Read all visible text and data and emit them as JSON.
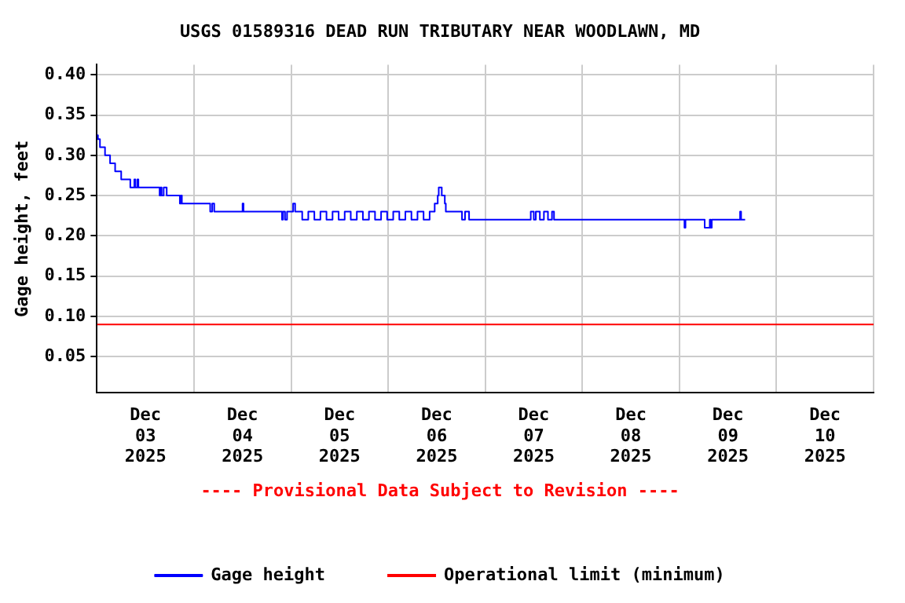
{
  "chart_data": {
    "type": "step",
    "title": "USGS 01589316 DEAD RUN TRIBUTARY NEAR WOODLAWN, MD",
    "ylabel": "Gage height, feet",
    "annotations": [
      "---- Provisional Data Subject to Revision ----"
    ],
    "xlim": [
      "2025-12-03T00:00",
      "2025-12-11T00:00"
    ],
    "xticks": [
      {
        "value": "2025-12-03T00:00",
        "label": null
      },
      {
        "value": "2025-12-03T12:00",
        "label": "Dec 03 2025"
      },
      {
        "value": "2025-12-04T00:00",
        "label": null
      },
      {
        "value": "2025-12-04T12:00",
        "label": "Dec 04 2025"
      },
      {
        "value": "2025-12-05T00:00",
        "label": null
      },
      {
        "value": "2025-12-05T12:00",
        "label": "Dec 05 2025"
      },
      {
        "value": "2025-12-06T00:00",
        "label": null
      },
      {
        "value": "2025-12-06T12:00",
        "label": "Dec 06 2025"
      },
      {
        "value": "2025-12-07T00:00",
        "label": null
      },
      {
        "value": "2025-12-07T12:00",
        "label": "Dec 07 2025"
      },
      {
        "value": "2025-12-08T00:00",
        "label": null
      },
      {
        "value": "2025-12-08T12:00",
        "label": "Dec 08 2025"
      },
      {
        "value": "2025-12-09T00:00",
        "label": null
      },
      {
        "value": "2025-12-09T12:00",
        "label": "Dec 09 2025"
      },
      {
        "value": "2025-12-10T00:00",
        "label": null
      },
      {
        "value": "2025-12-10T12:00",
        "label": "Dec 10 2025"
      },
      {
        "value": "2025-12-11T00:00",
        "label": null
      }
    ],
    "ylim": [
      0.005,
      0.4125
    ],
    "yticks": [
      0.05,
      {
        "value": 0.1,
        "label": "0.10"
      },
      0.15,
      {
        "value": 0.2,
        "label": "0.20"
      },
      0.25,
      {
        "value": 0.3,
        "label": "0.30"
      },
      0.35,
      {
        "value": 0.4,
        "label": "0.40"
      }
    ],
    "grid": true,
    "legend": "bottom",
    "marker": "none",
    "line_style": "solid",
    "series": [
      {
        "name": "Gage height",
        "color": "#0000ff",
        "x": [
          "2025-12-03T00:00",
          "2025-12-03T00:15",
          "2025-12-03T00:45",
          "2025-12-03T02:00",
          "2025-12-03T03:15",
          "2025-12-03T04:30",
          "2025-12-03T06:00",
          "2025-12-03T08:15",
          "2025-12-03T09:15",
          "2025-12-03T09:30",
          "2025-12-03T10:00",
          "2025-12-03T10:15",
          "2025-12-03T15:30",
          "2025-12-03T15:45",
          "2025-12-03T16:00",
          "2025-12-03T16:30",
          "2025-12-03T17:00",
          "2025-12-03T17:15",
          "2025-12-03T20:30",
          "2025-12-03T20:45",
          "2025-12-03T21:00",
          "2025-12-04T03:30",
          "2025-12-04T04:00",
          "2025-12-04T04:30",
          "2025-12-04T05:00",
          "2025-12-04T05:30",
          "2025-12-04T12:00",
          "2025-12-04T12:15",
          "2025-12-04T21:45",
          "2025-12-04T22:00",
          "2025-12-04T22:30",
          "2025-12-04T23:00",
          "2025-12-05T00:30",
          "2025-12-05T01:00",
          "2025-12-05T02:45",
          "2025-12-05T04:15",
          "2025-12-05T05:45",
          "2025-12-05T07:15",
          "2025-12-05T08:45",
          "2025-12-05T10:15",
          "2025-12-05T11:45",
          "2025-12-05T13:15",
          "2025-12-05T14:45",
          "2025-12-05T16:15",
          "2025-12-05T17:45",
          "2025-12-05T19:15",
          "2025-12-05T20:45",
          "2025-12-05T22:15",
          "2025-12-05T23:45",
          "2025-12-06T01:15",
          "2025-12-06T02:45",
          "2025-12-06T04:15",
          "2025-12-06T05:45",
          "2025-12-06T07:15",
          "2025-12-06T08:45",
          "2025-12-06T10:15",
          "2025-12-06T11:30",
          "2025-12-06T12:15",
          "2025-12-06T12:30",
          "2025-12-06T13:15",
          "2025-12-06T14:00",
          "2025-12-06T14:15",
          "2025-12-06T18:15",
          "2025-12-06T19:00",
          "2025-12-06T20:00",
          "2025-12-06T21:00",
          "2025-12-07T11:15",
          "2025-12-07T12:00",
          "2025-12-07T12:30",
          "2025-12-07T13:30",
          "2025-12-07T14:30",
          "2025-12-07T15:30",
          "2025-12-07T16:30",
          "2025-12-07T17:00",
          "2025-12-09T01:15",
          "2025-12-09T01:30",
          "2025-12-09T06:15",
          "2025-12-09T07:30",
          "2025-12-09T07:45",
          "2025-12-09T08:00",
          "2025-12-09T15:00",
          "2025-12-09T15:15",
          "2025-12-09T16:15"
        ],
        "values": [
          0.325,
          0.32,
          0.31,
          0.3,
          0.29,
          0.28,
          0.27,
          0.26,
          0.27,
          0.26,
          0.27,
          0.26,
          0.25,
          0.26,
          0.25,
          0.26,
          0.26,
          0.25,
          0.24,
          0.25,
          0.24,
          0.24,
          0.23,
          0.24,
          0.23,
          0.23,
          0.24,
          0.23,
          0.22,
          0.23,
          0.22,
          0.23,
          0.24,
          0.23,
          0.22,
          0.23,
          0.22,
          0.23,
          0.22,
          0.23,
          0.22,
          0.23,
          0.22,
          0.23,
          0.22,
          0.23,
          0.22,
          0.23,
          0.22,
          0.23,
          0.22,
          0.23,
          0.22,
          0.23,
          0.22,
          0.23,
          0.24,
          0.25,
          0.26,
          0.25,
          0.24,
          0.23,
          0.22,
          0.23,
          0.22,
          0.22,
          0.23,
          0.22,
          0.23,
          0.22,
          0.23,
          0.22,
          0.23,
          0.22,
          0.21,
          0.22,
          0.21,
          0.22,
          0.21,
          0.22,
          0.23,
          0.22,
          0.22
        ]
      }
    ],
    "ref_lines": [
      {
        "axis": "y",
        "value": 0.09,
        "label": "Operational limit (minimum)",
        "color": "#ff0000"
      }
    ]
  }
}
